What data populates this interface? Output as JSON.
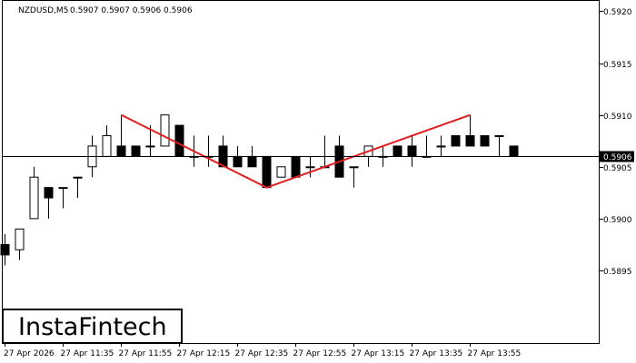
{
  "header": {
    "symbol": "NZDUSD,M5",
    "ohlc": "0.5907 0.5907 0.5906 0.5906"
  },
  "logo": {
    "text": "InstaFintech"
  },
  "price_axis": {
    "labels": [
      "0.5920",
      "0.5915",
      "0.5910",
      "0.5905",
      "0.5900",
      "0.5895"
    ],
    "current_price_label": "0.5906"
  },
  "time_axis": {
    "labels": [
      "27 Apr 2026",
      "27 Apr 11:35",
      "27 Apr 11:55",
      "27 Apr 12:15",
      "27 Apr 12:35",
      "27 Apr 12:55",
      "27 Apr 13:15",
      "27 Apr 13:35",
      "27 Apr 13:55"
    ]
  },
  "colors": {
    "background": "#ffffff",
    "bull_body": "#ffffff",
    "bear_body": "#000000",
    "candle_outline": "#000000",
    "pattern_line": "#e01e1e",
    "current_price_line": "#000000",
    "price_badge": "#000000"
  },
  "chart_data": {
    "type": "candlestick",
    "symbol": "NZDUSD",
    "timeframe": "M5",
    "ylim": [
      0.5888,
      0.5921
    ],
    "y_ticks": [
      0.592,
      0.5915,
      0.591,
      0.5905,
      0.59,
      0.5895
    ],
    "current_price": 0.5906,
    "x_tick_labels": [
      "27 Apr 2026",
      "27 Apr 11:35",
      "27 Apr 11:55",
      "27 Apr 12:15",
      "27 Apr 12:35",
      "27 Apr 12:55",
      "27 Apr 13:15",
      "27 Apr 13:35",
      "27 Apr 13:55"
    ],
    "candles": [
      {
        "o": 0.58975,
        "h": 0.58985,
        "l": 0.58955,
        "c": 0.58965
      },
      {
        "o": 0.5897,
        "h": 0.5899,
        "l": 0.5896,
        "c": 0.5899
      },
      {
        "o": 0.59,
        "h": 0.5905,
        "l": 0.59,
        "c": 0.5904
      },
      {
        "o": 0.5903,
        "h": 0.5903,
        "l": 0.59,
        "c": 0.5902
      },
      {
        "o": 0.5903,
        "h": 0.5903,
        "l": 0.5901,
        "c": 0.5903
      },
      {
        "o": 0.5904,
        "h": 0.5904,
        "l": 0.5902,
        "c": 0.5904
      },
      {
        "o": 0.5905,
        "h": 0.5908,
        "l": 0.5904,
        "c": 0.5907
      },
      {
        "o": 0.5906,
        "h": 0.5909,
        "l": 0.5906,
        "c": 0.5908
      },
      {
        "o": 0.5907,
        "h": 0.591,
        "l": 0.5906,
        "c": 0.5906
      },
      {
        "o": 0.5907,
        "h": 0.5907,
        "l": 0.5906,
        "c": 0.5906
      },
      {
        "o": 0.5907,
        "h": 0.5909,
        "l": 0.5906,
        "c": 0.5907
      },
      {
        "o": 0.5907,
        "h": 0.591,
        "l": 0.5907,
        "c": 0.591
      },
      {
        "o": 0.5909,
        "h": 0.5909,
        "l": 0.5906,
        "c": 0.5906
      },
      {
        "o": 0.5906,
        "h": 0.5908,
        "l": 0.5905,
        "c": 0.5906
      },
      {
        "o": 0.5906,
        "h": 0.5908,
        "l": 0.5905,
        "c": 0.5906
      },
      {
        "o": 0.5907,
        "h": 0.5908,
        "l": 0.5905,
        "c": 0.5905
      },
      {
        "o": 0.5906,
        "h": 0.5907,
        "l": 0.5905,
        "c": 0.5905
      },
      {
        "o": 0.5906,
        "h": 0.5907,
        "l": 0.5905,
        "c": 0.5905
      },
      {
        "o": 0.5906,
        "h": 0.5906,
        "l": 0.5903,
        "c": 0.5903
      },
      {
        "o": 0.5904,
        "h": 0.5905,
        "l": 0.5904,
        "c": 0.5905
      },
      {
        "o": 0.5906,
        "h": 0.5906,
        "l": 0.5904,
        "c": 0.5904
      },
      {
        "o": 0.5905,
        "h": 0.5906,
        "l": 0.5904,
        "c": 0.5905
      },
      {
        "o": 0.5905,
        "h": 0.5908,
        "l": 0.5905,
        "c": 0.5905
      },
      {
        "o": 0.5907,
        "h": 0.5908,
        "l": 0.5904,
        "c": 0.5904
      },
      {
        "o": 0.5905,
        "h": 0.5905,
        "l": 0.5903,
        "c": 0.5905
      },
      {
        "o": 0.5906,
        "h": 0.5907,
        "l": 0.5905,
        "c": 0.5907
      },
      {
        "o": 0.5906,
        "h": 0.5907,
        "l": 0.5905,
        "c": 0.5906
      },
      {
        "o": 0.5907,
        "h": 0.5907,
        "l": 0.5906,
        "c": 0.5906
      },
      {
        "o": 0.5907,
        "h": 0.5908,
        "l": 0.5905,
        "c": 0.5906
      },
      {
        "o": 0.5906,
        "h": 0.5908,
        "l": 0.5906,
        "c": 0.5906
      },
      {
        "o": 0.5907,
        "h": 0.5908,
        "l": 0.5906,
        "c": 0.5907
      },
      {
        "o": 0.5908,
        "h": 0.5908,
        "l": 0.5907,
        "c": 0.5907
      },
      {
        "o": 0.5908,
        "h": 0.591,
        "l": 0.5907,
        "c": 0.5907
      },
      {
        "o": 0.5908,
        "h": 0.5908,
        "l": 0.5907,
        "c": 0.5907
      },
      {
        "o": 0.5908,
        "h": 0.5908,
        "l": 0.5906,
        "c": 0.5908
      },
      {
        "o": 0.5907,
        "h": 0.5907,
        "l": 0.5906,
        "c": 0.5906
      }
    ],
    "pattern": {
      "name": "double top",
      "points": [
        {
          "candle": 8,
          "price": 0.591
        },
        {
          "candle": 18,
          "price": 0.5903
        },
        {
          "candle": 32,
          "price": 0.591
        }
      ]
    }
  }
}
